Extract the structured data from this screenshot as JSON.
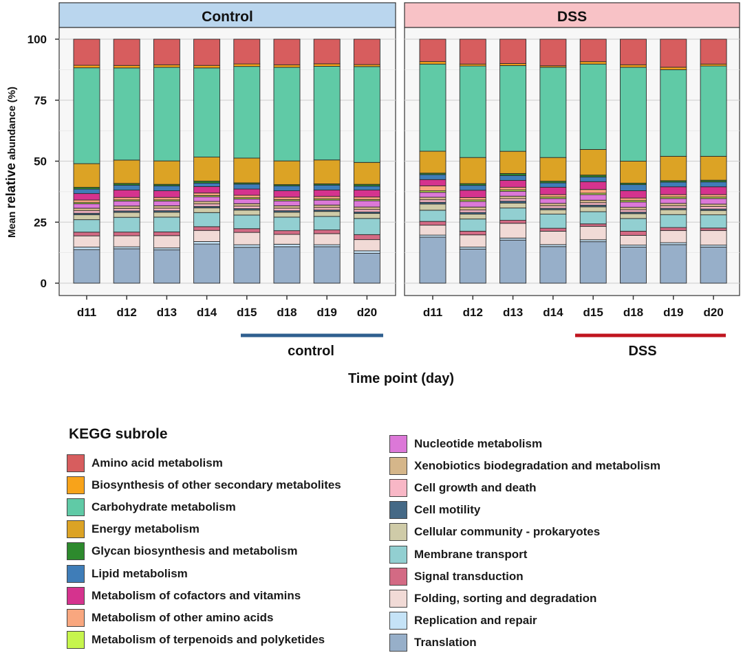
{
  "chart_data": {
    "type": "bar",
    "stacked": true,
    "ylabel_prefix": "Mean ",
    "ylabel_bold": "relative",
    "ylabel_suffix": " abundance (%)",
    "xlabel": "Time point (day)",
    "ylim": [
      0,
      100
    ],
    "yticks": [
      0,
      25,
      50,
      75,
      100
    ],
    "categories": [
      "d11",
      "d12",
      "d13",
      "d14",
      "d15",
      "d18",
      "d19",
      "d20"
    ],
    "legend_title": "KEGG subrole",
    "subroles": [
      {
        "name": "Translation",
        "color": "#97AFC9"
      },
      {
        "name": "Replication and repair",
        "color": "#C5E3F7"
      },
      {
        "name": "Folding, sorting and degradation",
        "color": "#F1DAD6"
      },
      {
        "name": "Signal transduction",
        "color": "#D36A84"
      },
      {
        "name": "Membrane transport",
        "color": "#92CFD1"
      },
      {
        "name": "Cellular community - prokaryotes",
        "color": "#CFCBA8"
      },
      {
        "name": "Cell motility",
        "color": "#456986"
      },
      {
        "name": "Cell growth and death",
        "color": "#F8B7C6"
      },
      {
        "name": "Xenobiotics biodegradation and metabolism",
        "color": "#D5B68A"
      },
      {
        "name": "Nucleotide metabolism",
        "color": "#DC78D8"
      },
      {
        "name": "Metabolism of terpenoids and polyketides",
        "color": "#C6F54D"
      },
      {
        "name": "Metabolism of other amino acids",
        "color": "#F9A77F"
      },
      {
        "name": "Metabolism of cofactors and vitamins",
        "color": "#D5338E"
      },
      {
        "name": "Lipid metabolism",
        "color": "#3F7DB8"
      },
      {
        "name": "Glycan biosynthesis and metabolism",
        "color": "#2D8A2D"
      },
      {
        "name": "Energy metabolism",
        "color": "#DCA325"
      },
      {
        "name": "Carbohydrate metabolism",
        "color": "#60CAA6"
      },
      {
        "name": "Biosynthesis of other secondary metabolites",
        "color": "#F8A31A"
      },
      {
        "name": "Amino acid metabolism",
        "color": "#D75D5E"
      }
    ],
    "panels": [
      {
        "title": "Control",
        "group_label": "control",
        "group_line_color": "#2F5F8F",
        "bars": [
          [
            13.5,
            1.0,
            4.5,
            1.5,
            5.0,
            2.0,
            0.6,
            1.0,
            1.0,
            1.8,
            0.5,
            1.0,
            2.6,
            1.8,
            0.7,
            9.5,
            38.5,
            1.0,
            10.5
          ],
          [
            14.0,
            0.8,
            4.5,
            1.5,
            6.0,
            2.0,
            0.6,
            1.0,
            1.0,
            2.0,
            0.5,
            1.0,
            3.0,
            2.0,
            0.7,
            9.5,
            37.5,
            1.0,
            10.7
          ],
          [
            13.5,
            0.8,
            5.0,
            1.5,
            6.0,
            2.0,
            0.6,
            1.0,
            1.0,
            1.9,
            0.5,
            1.0,
            2.7,
            2.0,
            0.6,
            9.5,
            38.0,
            1.0,
            10.4
          ],
          [
            15.8,
            1.0,
            4.5,
            1.5,
            5.7,
            1.9,
            0.6,
            1.0,
            1.0,
            1.9,
            0.5,
            1.0,
            2.6,
            1.4,
            0.8,
            9.7,
            36.0,
            1.0,
            10.6
          ],
          [
            14.5,
            1.0,
            5.0,
            1.5,
            5.5,
            2.0,
            0.6,
            1.0,
            1.0,
            1.9,
            0.5,
            1.0,
            2.5,
            2.0,
            0.5,
            10.0,
            37.0,
            1.0,
            10.0
          ],
          [
            14.8,
            1.0,
            4.0,
            1.5,
            5.5,
            2.0,
            0.6,
            1.0,
            1.0,
            2.0,
            0.5,
            1.0,
            2.6,
            2.0,
            0.5,
            9.6,
            38.0,
            1.0,
            10.4
          ],
          [
            14.8,
            0.8,
            4.5,
            1.5,
            5.5,
            2.0,
            0.6,
            1.0,
            1.0,
            2.0,
            0.5,
            1.0,
            2.6,
            2.0,
            0.5,
            9.7,
            38.0,
            1.0,
            10.0
          ],
          [
            12.0,
            1.0,
            4.5,
            2.0,
            6.5,
            2.0,
            0.6,
            1.0,
            1.0,
            2.5,
            0.5,
            1.0,
            2.8,
            1.6,
            0.7,
            8.8,
            38.5,
            0.8,
            10.2
          ]
        ]
      },
      {
        "title": "DSS",
        "group_label": "DSS",
        "group_line_color": "#C0151F",
        "bars": [
          [
            18.5,
            0.8,
            4.0,
            1.5,
            4.5,
            2.5,
            0.7,
            1.0,
            1.0,
            2.0,
            0.6,
            2.0,
            2.5,
            2.0,
            0.6,
            8.8,
            35.0,
            1.0,
            9.0
          ],
          [
            14.0,
            0.8,
            5.0,
            1.5,
            5.0,
            2.0,
            0.7,
            1.0,
            1.2,
            2.3,
            0.6,
            1.0,
            3.0,
            2.0,
            0.7,
            10.7,
            37.5,
            0.8,
            10.2
          ],
          [
            17.5,
            0.8,
            6.0,
            1.2,
            5.0,
            2.0,
            0.8,
            1.0,
            1.0,
            2.0,
            0.6,
            1.0,
            2.8,
            2.0,
            0.8,
            9.0,
            34.8,
            0.8,
            9.9
          ],
          [
            15.0,
            0.8,
            5.5,
            1.2,
            5.8,
            1.8,
            0.6,
            1.0,
            1.0,
            2.0,
            0.6,
            1.0,
            3.0,
            1.8,
            0.7,
            9.7,
            37.0,
            0.6,
            10.9
          ],
          [
            17.0,
            0.8,
            5.5,
            1.0,
            5.0,
            2.0,
            0.7,
            1.0,
            1.0,
            2.3,
            0.6,
            1.5,
            3.2,
            1.9,
            0.8,
            10.5,
            35.0,
            1.0,
            9.2
          ],
          [
            14.8,
            0.8,
            4.0,
            1.7,
            5.2,
            2.0,
            0.6,
            1.0,
            1.0,
            2.2,
            0.6,
            1.0,
            3.0,
            2.5,
            0.6,
            9.0,
            38.5,
            1.0,
            10.5
          ],
          [
            15.8,
            0.8,
            5.0,
            1.2,
            5.3,
            2.0,
            0.6,
            1.0,
            1.0,
            2.0,
            0.6,
            1.0,
            3.2,
            1.9,
            0.6,
            10.0,
            35.5,
            1.0,
            11.5
          ],
          [
            14.8,
            0.8,
            6.0,
            1.0,
            5.4,
            1.8,
            0.6,
            1.0,
            1.0,
            2.3,
            0.6,
            1.0,
            3.2,
            2.0,
            0.7,
            9.8,
            37.0,
            0.8,
            10.2
          ]
        ]
      }
    ],
    "legend_columns": [
      [
        "Amino acid metabolism",
        "Biosynthesis of other secondary metabolites",
        "Carbohydrate metabolism",
        "Energy metabolism",
        "Glycan biosynthesis and metabolism",
        "Lipid metabolism",
        "Metabolism of cofactors and vitamins",
        "Metabolism of other amino acids",
        "Metabolism of terpenoids and polyketides"
      ],
      [
        "Nucleotide metabolism",
        "Xenobiotics biodegradation and metabolism",
        "Cell growth and death",
        "Cell motility",
        "Cellular community - prokaryotes",
        "Membrane transport",
        "Signal transduction",
        "Folding, sorting and degradation",
        "Replication and repair",
        "Translation"
      ]
    ]
  }
}
